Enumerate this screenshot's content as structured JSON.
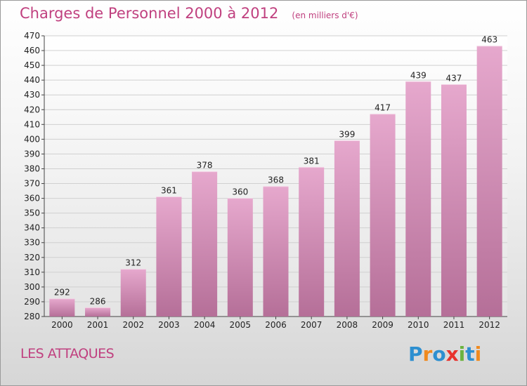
{
  "header": {
    "title": "Charges de Personnel 2000 à 2012",
    "subtitle": "(en milliers d'€)"
  },
  "footer": {
    "commune": "LES ATTAQUES",
    "logo_text": "Proxiti"
  },
  "colors": {
    "title": "#c0407f",
    "bar_top": "#e6a8cd",
    "bar_bottom": "#b56f98",
    "logo_blue": "#2d8fd0",
    "logo_orange": "#f08a1e",
    "logo_red": "#e8332e",
    "logo_green": "#6cb33f"
  },
  "chart_data": {
    "type": "bar",
    "title": "Charges de Personnel 2000 à 2012",
    "subtitle": "(en milliers d'€)",
    "categories": [
      "2000",
      "2001",
      "2002",
      "2003",
      "2004",
      "2005",
      "2006",
      "2007",
      "2008",
      "2009",
      "2010",
      "2011",
      "2012"
    ],
    "values": [
      292,
      286,
      312,
      361,
      378,
      360,
      368,
      381,
      399,
      417,
      439,
      437,
      463
    ],
    "ylim": [
      280,
      470
    ],
    "yticks": [
      280,
      290,
      300,
      310,
      320,
      330,
      340,
      350,
      360,
      370,
      380,
      390,
      400,
      410,
      420,
      430,
      440,
      450,
      460,
      470
    ],
    "grid": true,
    "legend": "none"
  }
}
